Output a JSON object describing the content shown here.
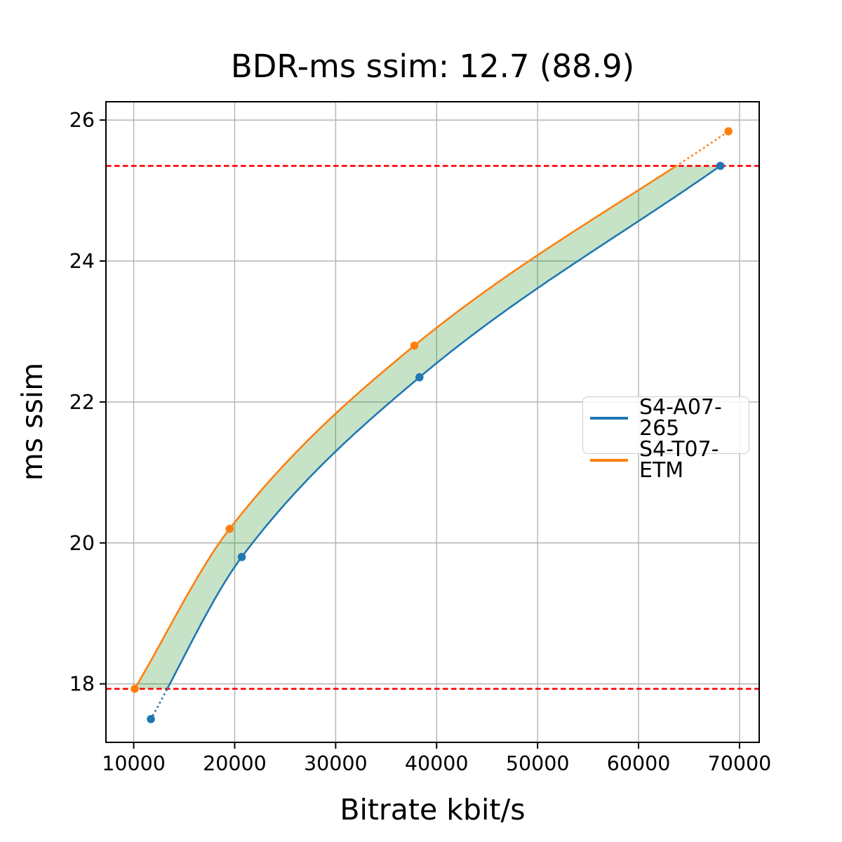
{
  "figure": {
    "title": "BDR-ms ssim: 12.7 (88.9)"
  },
  "chart_data": {
    "type": "line",
    "title": "BDR-ms ssim: 12.7 (88.9)",
    "xlabel": "Bitrate kbit/s",
    "ylabel": "ms ssim",
    "xlim": [
      7250,
      71950
    ],
    "ylim": [
      17.17,
      26.26
    ],
    "xticks": [
      10000,
      20000,
      30000,
      40000,
      50000,
      60000,
      70000
    ],
    "yticks": [
      18,
      20,
      22,
      24,
      26
    ],
    "grid": true,
    "legend_position": "center right",
    "bdr_value": "12.7",
    "overlap_percent": "88.9",
    "series": [
      {
        "name": "S4-A07-265",
        "color": "#1f77b4",
        "x": [
          11700,
          20700,
          38300,
          68100
        ],
        "y": [
          17.5,
          19.8,
          22.35,
          25.35
        ],
        "dotted_outside": "below_lower_hline"
      },
      {
        "name": "S4-T07-ETM",
        "color": "#ff7f0e",
        "x": [
          10100,
          19500,
          37800,
          68900
        ],
        "y": [
          17.93,
          20.2,
          22.8,
          25.84
        ],
        "dotted_outside": "above_upper_hline"
      }
    ],
    "hlines": [
      {
        "y": 17.93,
        "color": "#ff0000",
        "style": "dashed"
      },
      {
        "y": 25.35,
        "color": "#ff0000",
        "style": "dashed"
      }
    ],
    "fill_between": {
      "color": "#008000",
      "alpha": 0.22,
      "y_from": 17.93,
      "y_to": 25.35
    }
  },
  "legend": [
    {
      "label": "S4-A07-265",
      "color": "#1f77b4"
    },
    {
      "label": "S4-T07-ETM",
      "color": "#ff7f0e"
    }
  ],
  "colors": {
    "grid": "#b4b4b4",
    "spine": "#000000",
    "tick_text": "#000000",
    "background": "#ffffff"
  }
}
